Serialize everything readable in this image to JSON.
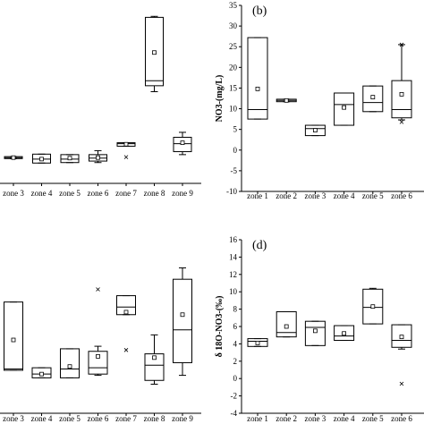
{
  "chart_data": [
    {
      "id": "a",
      "type": "box",
      "panel_label": "",
      "title": "",
      "xlabel": "",
      "ylabel": "",
      "categories": [
        "zone 3",
        "zone 4",
        "zone 5",
        "zone 6",
        "zone 7",
        "zone 8",
        "zone 9"
      ],
      "boxes": [
        {
          "q1": 3.0,
          "median": 3.2,
          "q3": 3.4,
          "min": 3.0,
          "max": 3.4,
          "mean": 3.2,
          "outliers": []
        },
        {
          "q1": 2.1,
          "median": 2.9,
          "q3": 3.9,
          "min": 2.1,
          "max": 3.9,
          "mean": 2.9,
          "outliers": []
        },
        {
          "q1": 2.2,
          "median": 2.9,
          "q3": 3.8,
          "min": 2.2,
          "max": 3.8,
          "mean": 3.1,
          "outliers": []
        },
        {
          "q1": 2.5,
          "median": 3.1,
          "q3": 3.8,
          "min": 2.2,
          "max": 4.6,
          "mean": 3.2,
          "outliers": []
        },
        {
          "q1": 5.5,
          "median": 6.0,
          "q3": 6.2,
          "min": 5.5,
          "max": 6.2,
          "mean": 5.9,
          "outliers": [
            3.3
          ]
        },
        {
          "q1": 17.7,
          "median": 18.7,
          "q3": 31.5,
          "min": 16.5,
          "max": 31.7,
          "mean": 24.4,
          "outliers": []
        },
        {
          "q1": 4.4,
          "median": 6.0,
          "q3": 7.3,
          "min": 3.8,
          "max": 8.3,
          "mean": 6.2,
          "outliers": []
        }
      ]
    },
    {
      "id": "b",
      "type": "box",
      "panel_label": "(b)",
      "title": "",
      "xlabel": "",
      "ylabel": "NO3-(mg/L)",
      "ylim": [
        -10,
        35
      ],
      "yticks": [
        -10,
        -5,
        0,
        5,
        10,
        15,
        20,
        25,
        30,
        35
      ],
      "categories": [
        "zone 1",
        "zone 2",
        "zone 3",
        "zone 4",
        "zone 5",
        "zone 6"
      ],
      "boxes": [
        {
          "q1": 7.5,
          "median": 9.8,
          "q3": 27.2,
          "min": 7.5,
          "max": 27.2,
          "mean": 14.8,
          "outliers": []
        },
        {
          "q1": 11.7,
          "median": 12.0,
          "q3": 12.3,
          "min": 11.7,
          "max": 12.3,
          "mean": 12.0,
          "outliers": []
        },
        {
          "q1": 3.5,
          "median": 5.2,
          "q3": 6.0,
          "min": 3.5,
          "max": 6.0,
          "mean": 4.8,
          "outliers": []
        },
        {
          "q1": 6.0,
          "median": 11.0,
          "q3": 13.8,
          "min": 6.0,
          "max": 13.8,
          "mean": 10.3,
          "outliers": []
        },
        {
          "q1": 9.3,
          "median": 11.5,
          "q3": 15.5,
          "min": 9.3,
          "max": 15.5,
          "mean": 12.8,
          "outliers": []
        },
        {
          "q1": 7.8,
          "median": 9.8,
          "q3": 16.8,
          "min": 7.3,
          "max": 25.5,
          "mean": 13.5,
          "outliers": [
            25.5,
            6.8
          ]
        }
      ]
    },
    {
      "id": "c",
      "type": "box",
      "panel_label": "",
      "title": "",
      "xlabel": "",
      "ylabel": "",
      "categories": [
        "zone 3",
        "zone 4",
        "zone 5",
        "zone 6",
        "zone 7",
        "zone 8",
        "zone 9"
      ],
      "boxes": [
        {
          "q1": 1.4,
          "median": 1.5,
          "q3": 6.8,
          "min": 1.4,
          "max": 6.8,
          "mean": 3.8,
          "outliers": []
        },
        {
          "q1": 0.8,
          "median": 1.1,
          "q3": 1.6,
          "min": 0.8,
          "max": 1.6,
          "mean": 1.1,
          "outliers": []
        },
        {
          "q1": 0.8,
          "median": 1.5,
          "q3": 3.1,
          "min": 0.8,
          "max": 3.1,
          "mean": 1.7,
          "outliers": []
        },
        {
          "q1": 1.1,
          "median": 1.6,
          "q3": 2.9,
          "min": 1.0,
          "max": 3.3,
          "mean": 2.5,
          "outliers": [
            7.8
          ]
        },
        {
          "q1": 5.8,
          "median": 6.4,
          "q3": 7.3,
          "min": 5.8,
          "max": 7.3,
          "mean": 6.0,
          "outliers": [
            3.0
          ]
        },
        {
          "q1": 0.6,
          "median": 1.8,
          "q3": 2.7,
          "min": 0.3,
          "max": 4.2,
          "mean": 2.4,
          "outliers": []
        },
        {
          "q1": 2.0,
          "median": 4.6,
          "q3": 8.6,
          "min": 1.0,
          "max": 9.5,
          "mean": 5.8,
          "outliers": []
        }
      ]
    },
    {
      "id": "d",
      "type": "box",
      "panel_label": "(d)",
      "title": "",
      "xlabel": "",
      "ylabel": "δ 18O-NO3-(‰)",
      "ylim": [
        -4,
        16
      ],
      "yticks": [
        -4,
        -2,
        0,
        2,
        4,
        6,
        8,
        10,
        12,
        14,
        16
      ],
      "categories": [
        "zone 1",
        "zone 2",
        "zone 3",
        "zone 4",
        "zone 5",
        "zone 6"
      ],
      "boxes": [
        {
          "q1": 3.7,
          "median": 4.3,
          "q3": 4.6,
          "min": 3.7,
          "max": 4.6,
          "mean": 4.1,
          "outliers": []
        },
        {
          "q1": 4.8,
          "median": 5.3,
          "q3": 7.7,
          "min": 4.8,
          "max": 7.7,
          "mean": 6.0,
          "outliers": []
        },
        {
          "q1": 3.8,
          "median": 5.9,
          "q3": 6.6,
          "min": 3.8,
          "max": 6.6,
          "mean": 5.5,
          "outliers": []
        },
        {
          "q1": 4.4,
          "median": 4.9,
          "q3": 6.1,
          "min": 4.4,
          "max": 6.1,
          "mean": 5.2,
          "outliers": []
        },
        {
          "q1": 6.3,
          "median": 8.2,
          "q3": 10.3,
          "min": 6.3,
          "max": 10.4,
          "mean": 8.3,
          "outliers": []
        },
        {
          "q1": 3.6,
          "median": 4.4,
          "q3": 6.2,
          "min": 3.4,
          "max": 6.2,
          "mean": 4.8,
          "outliers": [
            -0.6
          ]
        }
      ]
    }
  ]
}
